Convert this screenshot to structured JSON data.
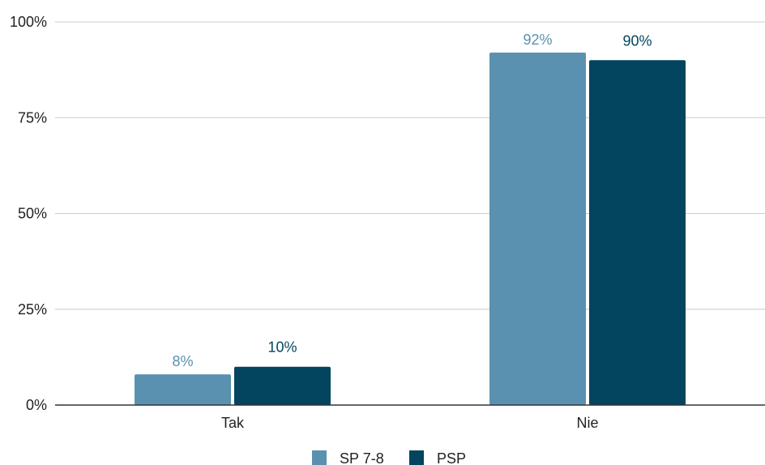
{
  "chart_data": {
    "type": "bar",
    "categories": [
      "Tak",
      "Nie"
    ],
    "series": [
      {
        "name": "SP 7-8",
        "values": [
          8,
          92
        ],
        "labels": [
          "8%",
          "92%"
        ],
        "color": "#5a91b0"
      },
      {
        "name": "PSP",
        "values": [
          10,
          90
        ],
        "labels": [
          "10%",
          "90%"
        ],
        "color": "#03445f"
      }
    ],
    "y_ticks": [
      {
        "value": 0,
        "label": "0%"
      },
      {
        "value": 25,
        "label": "25%"
      },
      {
        "value": 50,
        "label": "50%"
      },
      {
        "value": 75,
        "label": "75%"
      },
      {
        "value": 100,
        "label": "100%"
      }
    ],
    "ylim": [
      0,
      100
    ],
    "title": "",
    "xlabel": "",
    "ylabel": "",
    "grid": true,
    "legend_position": "bottom"
  }
}
